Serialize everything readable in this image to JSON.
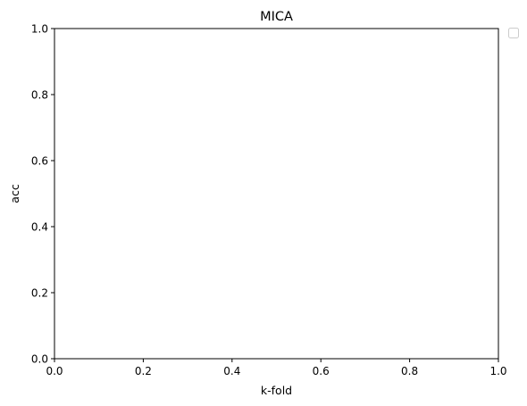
{
  "chart_data": {
    "type": "line",
    "title": "MICA",
    "xlabel": "k-fold",
    "ylabel": "acc",
    "xlim": [
      0.0,
      1.0
    ],
    "ylim": [
      0.0,
      1.0
    ],
    "xticks": [
      "0.0",
      "0.2",
      "0.4",
      "0.6",
      "0.8",
      "1.0"
    ],
    "yticks": [
      "0.0",
      "0.2",
      "0.4",
      "0.6",
      "0.8",
      "1.0"
    ],
    "series": [],
    "grid": false,
    "legend": {
      "placement": "outside-top-right",
      "entries": []
    },
    "colors": {
      "axis": "#000000",
      "background": "#ffffff",
      "legend_border": "#cccccc"
    }
  }
}
